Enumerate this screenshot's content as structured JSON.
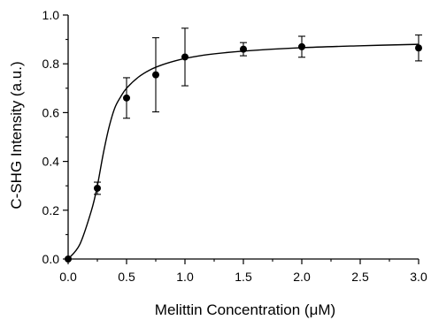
{
  "chart_data": {
    "type": "scatter",
    "xlabel": "Melittin Concentration (μM)",
    "ylabel": "C-SHG Intensity (a.u.)",
    "xlim": [
      0.0,
      3.0
    ],
    "ylim": [
      0.0,
      1.0
    ],
    "x_ticks": [
      "0.0",
      "0.5",
      "1.0",
      "1.5",
      "2.0",
      "2.5",
      "3.0"
    ],
    "y_ticks": [
      "0.0",
      "0.2",
      "0.4",
      "0.6",
      "0.8",
      "1.0"
    ],
    "grid": false,
    "series": [
      {
        "x": [
          0.0,
          0.25,
          0.5,
          0.75,
          1.0,
          1.5,
          2.0,
          3.0
        ],
        "y": [
          0.0,
          0.29,
          0.66,
          0.755,
          0.828,
          0.86,
          0.87,
          0.865
        ],
        "error": [
          0.0,
          0.025,
          0.083,
          0.152,
          0.118,
          0.027,
          0.043,
          0.053
        ],
        "marker": "filled-circle",
        "color": "#000000"
      }
    ],
    "fit_curve": {
      "style": "solid-line",
      "color": "#000000",
      "x": [
        0.0,
        0.1,
        0.2,
        0.25,
        0.3,
        0.35,
        0.4,
        0.45,
        0.5,
        0.6,
        0.7,
        0.8,
        0.9,
        1.0,
        1.2,
        1.5,
        2.0,
        2.5,
        3.0
      ],
      "y": [
        0.0,
        0.06,
        0.2,
        0.3,
        0.43,
        0.54,
        0.62,
        0.665,
        0.7,
        0.745,
        0.775,
        0.795,
        0.81,
        0.822,
        0.838,
        0.852,
        0.866,
        0.874,
        0.88
      ]
    }
  }
}
